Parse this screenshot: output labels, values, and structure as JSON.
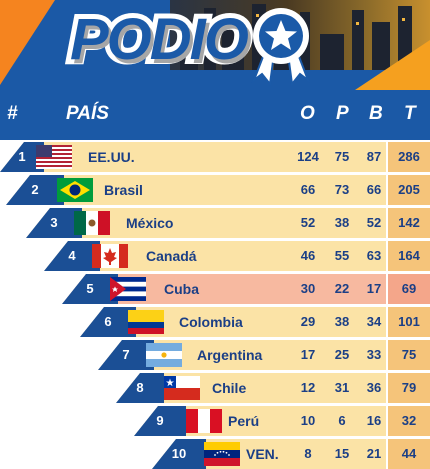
{
  "logo": {
    "text": "PODIO"
  },
  "headers": {
    "rank": "#",
    "country": "PAÍS",
    "gold": "O",
    "silver": "P",
    "bronze": "B",
    "total": "T"
  },
  "rows": [
    {
      "rank": "1",
      "country": "EE.UU.",
      "gold": "124",
      "silver": "75",
      "bronze": "87",
      "total": "286",
      "flag": "usa-flag-icon"
    },
    {
      "rank": "2",
      "country": "Brasil",
      "gold": "66",
      "silver": "73",
      "bronze": "66",
      "total": "205",
      "flag": "brazil-flag-icon"
    },
    {
      "rank": "3",
      "country": "México",
      "gold": "52",
      "silver": "38",
      "bronze": "52",
      "total": "142",
      "flag": "mexico-flag-icon"
    },
    {
      "rank": "4",
      "country": "Canadá",
      "gold": "46",
      "silver": "55",
      "bronze": "63",
      "total": "164",
      "flag": "canada-flag-icon"
    },
    {
      "rank": "5",
      "country": "Cuba",
      "gold": "30",
      "silver": "22",
      "bronze": "17",
      "total": "69",
      "flag": "cuba-flag-icon",
      "highlight": true
    },
    {
      "rank": "6",
      "country": "Colombia",
      "gold": "29",
      "silver": "38",
      "bronze": "34",
      "total": "101",
      "flag": "colombia-flag-icon"
    },
    {
      "rank": "7",
      "country": "Argentina",
      "gold": "17",
      "silver": "25",
      "bronze": "33",
      "total": "75",
      "flag": "argentina-flag-icon"
    },
    {
      "rank": "8",
      "country": "Chile",
      "gold": "12",
      "silver": "31",
      "bronze": "36",
      "total": "79",
      "flag": "chile-flag-icon"
    },
    {
      "rank": "9",
      "country": "Perú",
      "gold": "10",
      "silver": "6",
      "bronze": "16",
      "total": "32",
      "flag": "peru-flag-icon"
    },
    {
      "rank": "10",
      "country": "VEN.",
      "gold": "8",
      "silver": "15",
      "bronze": "21",
      "total": "44",
      "flag": "venezuela-flag-icon"
    }
  ],
  "colors": {
    "banner": "#1b59a6",
    "row": "#fbe3a6",
    "row_highlight": "#f7b9a0",
    "total_cell": "#f5c47a",
    "rank_cell": "#1b4f95",
    "text": "#1b3f86"
  }
}
